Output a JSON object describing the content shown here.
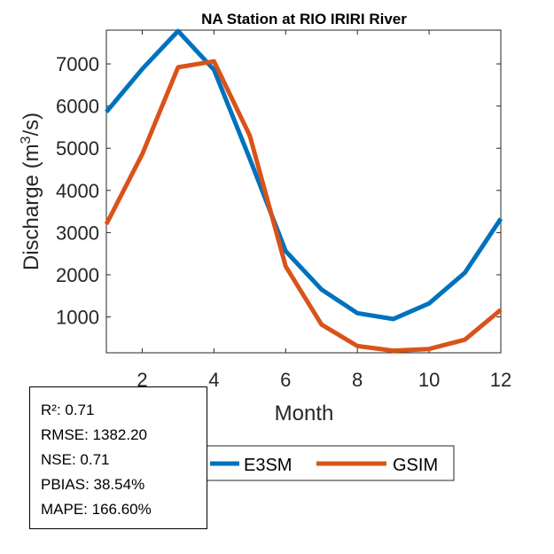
{
  "chart_data": {
    "type": "line",
    "title": "NA  Station at  RIO IRIRI  River",
    "xlabel": "Month",
    "ylabel_main": "Discharge (m",
    "ylabel_sup": "3",
    "ylabel_end": "/s)",
    "x": [
      1,
      2,
      3,
      4,
      5,
      6,
      7,
      8,
      9,
      10,
      11,
      12
    ],
    "xlim": [
      1,
      12
    ],
    "ylim": [
      150,
      7800
    ],
    "xticks": [
      2,
      4,
      6,
      8,
      10,
      12
    ],
    "yticks": [
      1000,
      2000,
      3000,
      4000,
      5000,
      6000,
      7000
    ],
    "grid": false,
    "legend_position": "bottom",
    "series": [
      {
        "name": "E3SM",
        "color": "#0072BD",
        "values": [
          5860,
          6880,
          7780,
          6860,
          4750,
          2560,
          1650,
          1090,
          950,
          1320,
          2050,
          3330
        ]
      },
      {
        "name": "GSIM",
        "color": "#D95319",
        "values": [
          3200,
          4860,
          6920,
          7060,
          5300,
          2200,
          820,
          310,
          200,
          240,
          460,
          1170
        ]
      }
    ]
  },
  "stats": {
    "r2": "R²: 0.71",
    "rmse": "RMSE: 1382.20",
    "nse": "NSE: 0.71",
    "pbias": "PBIAS: 38.54%",
    "mape": "MAPE: 166.60%"
  }
}
